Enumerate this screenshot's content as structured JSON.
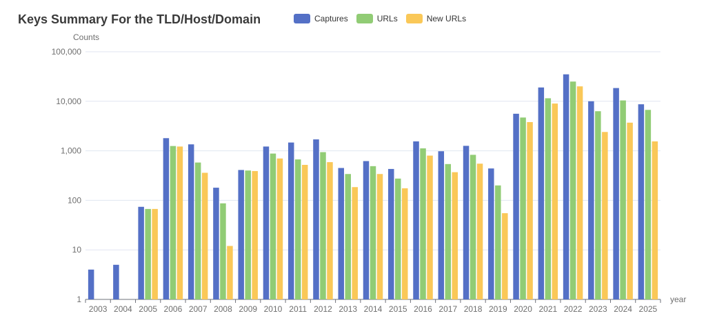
{
  "chart_data": {
    "type": "bar",
    "title": "Keys Summary For the TLD/Host/Domain",
    "ylabel": "Counts",
    "xlabel": "year",
    "yscale": "log",
    "ylim": [
      1,
      100000
    ],
    "yticks": [
      "1",
      "10",
      "100",
      "1,000",
      "10,000",
      "100,000"
    ],
    "yticks_values": [
      1,
      10,
      100,
      1000,
      10000,
      100000
    ],
    "legend_position": "top",
    "grid": true,
    "categories": [
      "2003",
      "2004",
      "2005",
      "2006",
      "2007",
      "2008",
      "2009",
      "2010",
      "2011",
      "2012",
      "2013",
      "2014",
      "2015",
      "2016",
      "2017",
      "2018",
      "2019",
      "2020",
      "2021",
      "2022",
      "2023",
      "2024",
      "2025"
    ],
    "series": [
      {
        "name": "Captures",
        "color": "#5470c6",
        "values": [
          4,
          5,
          74,
          1800,
          1350,
          180,
          410,
          1220,
          1470,
          1700,
          450,
          620,
          430,
          1550,
          980,
          1260,
          440,
          5600,
          19000,
          35000,
          10000,
          18500,
          8700
        ]
      },
      {
        "name": "URLs",
        "color": "#91cc75",
        "values": [
          null,
          null,
          67,
          1250,
          580,
          87,
          400,
          880,
          670,
          940,
          340,
          490,
          275,
          1120,
          540,
          830,
          200,
          4700,
          11500,
          25000,
          6300,
          10400,
          6700
        ]
      },
      {
        "name": "New URLs",
        "color": "#fac858",
        "values": [
          null,
          null,
          67,
          1220,
          360,
          12,
          390,
          700,
          520,
          590,
          185,
          340,
          175,
          800,
          370,
          550,
          55,
          3800,
          9000,
          20000,
          2400,
          3700,
          1550
        ]
      }
    ]
  }
}
